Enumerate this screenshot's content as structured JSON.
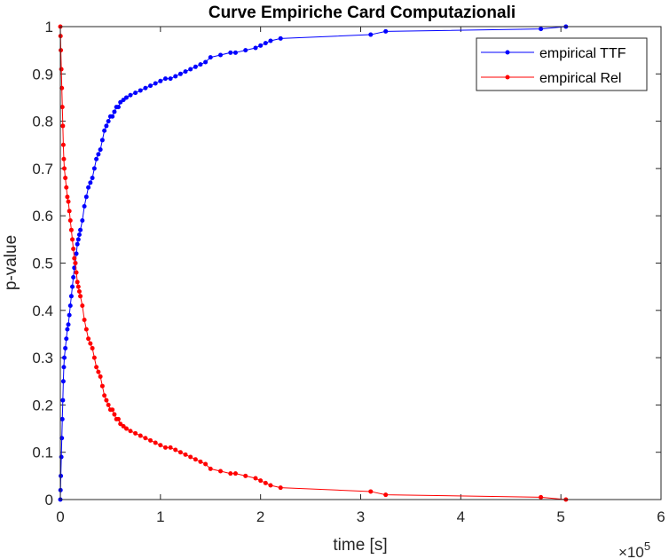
{
  "chart_data": {
    "type": "line",
    "title": "Curve Empiriche Card Computazionali",
    "xlabel": "time [s]",
    "ylabel": "p-value",
    "x_exponent_base": "×10",
    "x_exponent_power": "5",
    "x_scale": 100000,
    "xlim": [
      0,
      600000
    ],
    "ylim": [
      0,
      1
    ],
    "x_ticks": [
      0,
      1,
      2,
      3,
      4,
      5,
      6
    ],
    "y_ticks": [
      0,
      0.1,
      0.2,
      0.3,
      0.4,
      0.5,
      0.6,
      0.7,
      0.8,
      0.9,
      1
    ],
    "y_tick_labels": [
      "0",
      "0.1",
      "0.2",
      "0.3",
      "0.4",
      "0.5",
      "0.6",
      "0.7",
      "0.8",
      "0.9",
      "1"
    ],
    "grid": false,
    "legend_position": "top-right",
    "series": [
      {
        "name": "empirical TTF",
        "color": "#0000ff",
        "marker": "dot",
        "x": [
          0,
          200,
          500,
          1000,
          1500,
          2000,
          2500,
          3000,
          3500,
          4000,
          5000,
          6000,
          7000,
          8000,
          9000,
          10000,
          11000,
          12000,
          13000,
          14000,
          15000,
          16000,
          17000,
          18000,
          19000,
          20000,
          22000,
          24000,
          26000,
          28000,
          30000,
          32000,
          34000,
          36000,
          38000,
          40000,
          42000,
          44000,
          46000,
          48000,
          50000,
          52000,
          54000,
          56000,
          58000,
          60000,
          63000,
          66000,
          70000,
          75000,
          80000,
          85000,
          90000,
          95000,
          100000,
          105000,
          110000,
          115000,
          120000,
          125000,
          130000,
          135000,
          140000,
          145000,
          150000,
          160000,
          170000,
          175000,
          185000,
          195000,
          200000,
          205000,
          210000,
          220000,
          310000,
          325000,
          480000,
          505000
        ],
        "y": [
          0,
          0.02,
          0.05,
          0.09,
          0.13,
          0.17,
          0.21,
          0.25,
          0.28,
          0.3,
          0.32,
          0.34,
          0.36,
          0.37,
          0.39,
          0.41,
          0.43,
          0.45,
          0.47,
          0.49,
          0.5,
          0.52,
          0.54,
          0.55,
          0.56,
          0.57,
          0.59,
          0.62,
          0.64,
          0.66,
          0.67,
          0.68,
          0.7,
          0.72,
          0.73,
          0.74,
          0.76,
          0.78,
          0.79,
          0.8,
          0.81,
          0.81,
          0.82,
          0.83,
          0.83,
          0.84,
          0.845,
          0.85,
          0.855,
          0.86,
          0.865,
          0.87,
          0.875,
          0.88,
          0.885,
          0.89,
          0.89,
          0.895,
          0.9,
          0.905,
          0.91,
          0.915,
          0.92,
          0.925,
          0.935,
          0.94,
          0.945,
          0.945,
          0.95,
          0.955,
          0.96,
          0.965,
          0.97,
          0.975,
          0.983,
          0.99,
          0.995,
          1.0
        ]
      },
      {
        "name": "empirical Rel",
        "color": "#ff0000",
        "marker": "dot",
        "x": [
          0,
          200,
          500,
          1000,
          1500,
          2000,
          2500,
          3000,
          3500,
          4000,
          5000,
          6000,
          7000,
          8000,
          9000,
          10000,
          11000,
          12000,
          13000,
          14000,
          15000,
          16000,
          17000,
          18000,
          19000,
          20000,
          22000,
          24000,
          26000,
          28000,
          30000,
          32000,
          34000,
          36000,
          38000,
          40000,
          42000,
          44000,
          46000,
          48000,
          50000,
          52000,
          54000,
          56000,
          58000,
          60000,
          63000,
          66000,
          70000,
          75000,
          80000,
          85000,
          90000,
          95000,
          100000,
          105000,
          110000,
          115000,
          120000,
          125000,
          130000,
          135000,
          140000,
          145000,
          150000,
          160000,
          170000,
          175000,
          185000,
          195000,
          200000,
          205000,
          210000,
          220000,
          310000,
          325000,
          480000,
          505000
        ],
        "y": [
          1.0,
          0.98,
          0.95,
          0.91,
          0.87,
          0.83,
          0.79,
          0.75,
          0.72,
          0.7,
          0.68,
          0.66,
          0.64,
          0.63,
          0.61,
          0.59,
          0.57,
          0.55,
          0.53,
          0.51,
          0.5,
          0.48,
          0.46,
          0.45,
          0.44,
          0.43,
          0.41,
          0.38,
          0.36,
          0.34,
          0.33,
          0.32,
          0.3,
          0.28,
          0.27,
          0.26,
          0.24,
          0.22,
          0.21,
          0.2,
          0.19,
          0.19,
          0.18,
          0.17,
          0.17,
          0.16,
          0.155,
          0.15,
          0.145,
          0.14,
          0.135,
          0.13,
          0.125,
          0.12,
          0.115,
          0.11,
          0.11,
          0.105,
          0.1,
          0.095,
          0.09,
          0.085,
          0.08,
          0.075,
          0.065,
          0.06,
          0.055,
          0.055,
          0.05,
          0.045,
          0.04,
          0.035,
          0.03,
          0.025,
          0.017,
          0.01,
          0.005,
          0.0
        ]
      }
    ]
  }
}
